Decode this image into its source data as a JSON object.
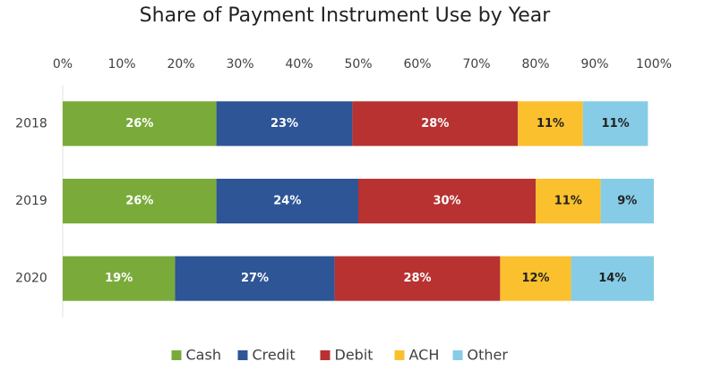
{
  "chart_data": {
    "type": "stacked-barh",
    "title": "Share of Payment Instrument Use by Year",
    "categories": [
      "2018",
      "2019",
      "2020"
    ],
    "series": [
      {
        "name": "Cash",
        "color": "#7aab3a",
        "values": [
          26,
          26,
          19
        ],
        "value_labels": [
          "26%",
          "26%",
          "19%"
        ]
      },
      {
        "name": "Credit",
        "color": "#2e5596",
        "values": [
          23,
          24,
          27
        ],
        "value_labels": [
          "23%",
          "24%",
          "27%"
        ]
      },
      {
        "name": "Debit",
        "color": "#b83232",
        "values": [
          28,
          30,
          28
        ],
        "value_labels": [
          "28%",
          "30%",
          "28%"
        ]
      },
      {
        "name": "ACH",
        "color": "#fbc02d",
        "values": [
          11,
          11,
          12
        ],
        "value_labels": [
          "11%",
          "11%",
          "12%"
        ]
      },
      {
        "name": "Other",
        "color": "#86cce6",
        "values": [
          11,
          9,
          14
        ],
        "value_labels": [
          "11%",
          "9%",
          "14%"
        ]
      }
    ],
    "xlim": [
      0,
      100
    ],
    "xticks": [
      {
        "value": 0,
        "label": "0%"
      },
      {
        "value": 10,
        "label": "10%"
      },
      {
        "value": 20,
        "label": "20%"
      },
      {
        "value": 30,
        "label": "30%"
      },
      {
        "value": 40,
        "label": "40%"
      },
      {
        "value": 50,
        "label": "50%"
      },
      {
        "value": 60,
        "label": "60%"
      },
      {
        "value": 70,
        "label": "70%"
      },
      {
        "value": 80,
        "label": "80%"
      },
      {
        "value": 90,
        "label": "90%"
      },
      {
        "value": 100,
        "label": "100%"
      }
    ],
    "legend": "bottom"
  }
}
